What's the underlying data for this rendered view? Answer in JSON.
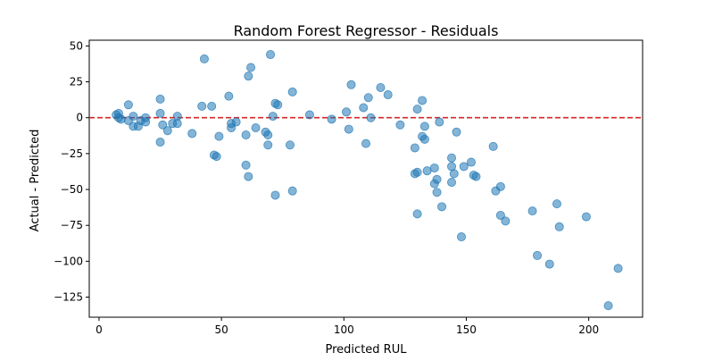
{
  "chart_data": {
    "type": "scatter",
    "title": "Random Forest Regressor - Residuals",
    "xlabel": "Predicted RUL",
    "ylabel": "Actual - Predicted",
    "xlim": [
      -4,
      222
    ],
    "ylim": [
      -139,
      54
    ],
    "xticks": [
      0,
      50,
      100,
      150,
      200
    ],
    "yticks": [
      50,
      25,
      0,
      -25,
      -50,
      -75,
      -100,
      -125
    ],
    "ytick_labels": [
      "50",
      "25",
      "0",
      "−25",
      "−50",
      "−75",
      "−100",
      "−125"
    ],
    "grid": false,
    "reference_line": {
      "y": 0,
      "style": "dashed",
      "color": "#d62728"
    },
    "point_color": "#1f77b4",
    "point_alpha": 0.55,
    "points": [
      {
        "x": 7,
        "y": 2
      },
      {
        "x": 8,
        "y": 3
      },
      {
        "x": 8,
        "y": 0
      },
      {
        "x": 9,
        "y": -1
      },
      {
        "x": 12,
        "y": 9
      },
      {
        "x": 12,
        "y": -2
      },
      {
        "x": 14,
        "y": -6
      },
      {
        "x": 14,
        "y": 1
      },
      {
        "x": 16,
        "y": -6
      },
      {
        "x": 17,
        "y": -2
      },
      {
        "x": 19,
        "y": 0
      },
      {
        "x": 19,
        "y": -3
      },
      {
        "x": 25,
        "y": 13
      },
      {
        "x": 25,
        "y": 3
      },
      {
        "x": 25,
        "y": -17
      },
      {
        "x": 26,
        "y": -5
      },
      {
        "x": 28,
        "y": -9
      },
      {
        "x": 30,
        "y": -4
      },
      {
        "x": 32,
        "y": 1
      },
      {
        "x": 32,
        "y": -4
      },
      {
        "x": 38,
        "y": -11
      },
      {
        "x": 42,
        "y": 8
      },
      {
        "x": 43,
        "y": 41
      },
      {
        "x": 46,
        "y": 8
      },
      {
        "x": 47,
        "y": -26
      },
      {
        "x": 48,
        "y": -27
      },
      {
        "x": 49,
        "y": -13
      },
      {
        "x": 53,
        "y": 15
      },
      {
        "x": 54,
        "y": -4
      },
      {
        "x": 54,
        "y": -7
      },
      {
        "x": 56,
        "y": -3
      },
      {
        "x": 60,
        "y": -12
      },
      {
        "x": 60,
        "y": -33
      },
      {
        "x": 61,
        "y": -41
      },
      {
        "x": 61,
        "y": 29
      },
      {
        "x": 62,
        "y": 35
      },
      {
        "x": 64,
        "y": -7
      },
      {
        "x": 68,
        "y": -10
      },
      {
        "x": 69,
        "y": -12
      },
      {
        "x": 69,
        "y": -19
      },
      {
        "x": 70,
        "y": 44
      },
      {
        "x": 71,
        "y": 1
      },
      {
        "x": 72,
        "y": 10
      },
      {
        "x": 73,
        "y": 9
      },
      {
        "x": 72,
        "y": -54
      },
      {
        "x": 78,
        "y": -19
      },
      {
        "x": 79,
        "y": 18
      },
      {
        "x": 79,
        "y": -51
      },
      {
        "x": 86,
        "y": 2
      },
      {
        "x": 95,
        "y": -1
      },
      {
        "x": 101,
        "y": 4
      },
      {
        "x": 102,
        "y": -8
      },
      {
        "x": 103,
        "y": 23
      },
      {
        "x": 108,
        "y": 7
      },
      {
        "x": 109,
        "y": -18
      },
      {
        "x": 110,
        "y": 14
      },
      {
        "x": 111,
        "y": 0
      },
      {
        "x": 115,
        "y": 21
      },
      {
        "x": 118,
        "y": 16
      },
      {
        "x": 123,
        "y": -5
      },
      {
        "x": 129,
        "y": -21
      },
      {
        "x": 129,
        "y": -39
      },
      {
        "x": 130,
        "y": -38
      },
      {
        "x": 130,
        "y": 6
      },
      {
        "x": 130,
        "y": -67
      },
      {
        "x": 132,
        "y": -13
      },
      {
        "x": 132,
        "y": 12
      },
      {
        "x": 133,
        "y": -15
      },
      {
        "x": 133,
        "y": -6
      },
      {
        "x": 134,
        "y": -37
      },
      {
        "x": 137,
        "y": -35
      },
      {
        "x": 137,
        "y": -46
      },
      {
        "x": 138,
        "y": -43
      },
      {
        "x": 138,
        "y": -52
      },
      {
        "x": 139,
        "y": -3
      },
      {
        "x": 140,
        "y": -62
      },
      {
        "x": 144,
        "y": -28
      },
      {
        "x": 144,
        "y": -34
      },
      {
        "x": 144,
        "y": -45
      },
      {
        "x": 145,
        "y": -39
      },
      {
        "x": 146,
        "y": -10
      },
      {
        "x": 148,
        "y": -83
      },
      {
        "x": 149,
        "y": -34
      },
      {
        "x": 152,
        "y": -31
      },
      {
        "x": 153,
        "y": -40
      },
      {
        "x": 154,
        "y": -41
      },
      {
        "x": 161,
        "y": -20
      },
      {
        "x": 162,
        "y": -51
      },
      {
        "x": 164,
        "y": -48
      },
      {
        "x": 164,
        "y": -68
      },
      {
        "x": 166,
        "y": -72
      },
      {
        "x": 177,
        "y": -65
      },
      {
        "x": 179,
        "y": -96
      },
      {
        "x": 184,
        "y": -102
      },
      {
        "x": 187,
        "y": -60
      },
      {
        "x": 188,
        "y": -76
      },
      {
        "x": 199,
        "y": -69
      },
      {
        "x": 208,
        "y": -131
      },
      {
        "x": 212,
        "y": -105
      }
    ]
  }
}
